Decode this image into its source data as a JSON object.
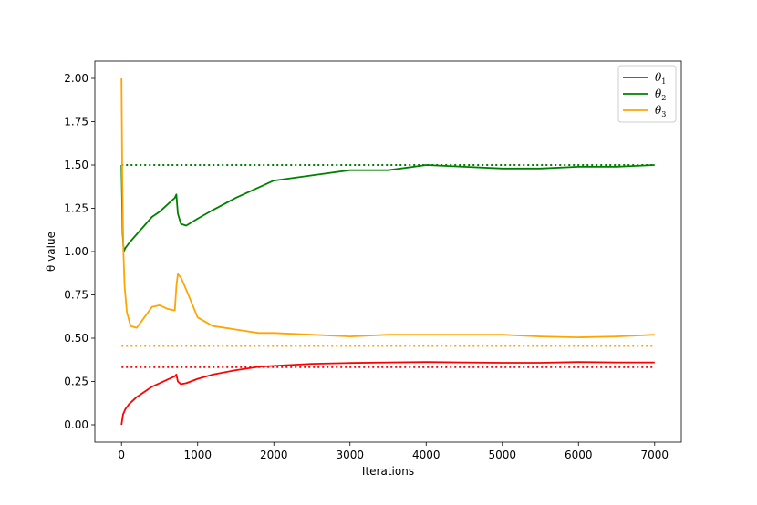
{
  "chart_data": {
    "type": "line",
    "title": "",
    "xlabel": "Iterations",
    "ylabel": "θ value",
    "xlim": [
      -350,
      7350
    ],
    "ylim": [
      -0.1,
      2.1
    ],
    "xticks": [
      0,
      1000,
      2000,
      3000,
      4000,
      5000,
      6000,
      7000
    ],
    "xtick_labels": [
      "0",
      "1000",
      "2000",
      "3000",
      "4000",
      "5000",
      "6000",
      "7000"
    ],
    "yticks": [
      0.0,
      0.25,
      0.5,
      0.75,
      1.0,
      1.25,
      1.5,
      1.75,
      2.0
    ],
    "ytick_labels": [
      "0.00",
      "0.25",
      "0.50",
      "0.75",
      "1.00",
      "1.25",
      "1.50",
      "1.75",
      "2.00"
    ],
    "grid": false,
    "legend_position": "top-right",
    "series": [
      {
        "name": "θ1",
        "label_base": "θ",
        "label_sub": "1",
        "color": "#ff0000",
        "points": [
          [
            0,
            0.0
          ],
          [
            20,
            0.06
          ],
          [
            50,
            0.09
          ],
          [
            100,
            0.12
          ],
          [
            200,
            0.16
          ],
          [
            300,
            0.19
          ],
          [
            400,
            0.22
          ],
          [
            500,
            0.24
          ],
          [
            600,
            0.26
          ],
          [
            700,
            0.28
          ],
          [
            720,
            0.29
          ],
          [
            740,
            0.25
          ],
          [
            780,
            0.235
          ],
          [
            850,
            0.24
          ],
          [
            1000,
            0.265
          ],
          [
            1200,
            0.29
          ],
          [
            1500,
            0.315
          ],
          [
            1800,
            0.335
          ],
          [
            2000,
            0.34
          ],
          [
            2500,
            0.352
          ],
          [
            3000,
            0.357
          ],
          [
            3500,
            0.36
          ],
          [
            4000,
            0.362
          ],
          [
            4500,
            0.36
          ],
          [
            5000,
            0.358
          ],
          [
            5500,
            0.358
          ],
          [
            6000,
            0.362
          ],
          [
            6500,
            0.36
          ],
          [
            7000,
            0.36
          ]
        ],
        "target": 0.333
      },
      {
        "name": "θ2",
        "label_base": "θ",
        "label_sub": "2",
        "color": "#008000",
        "points": [
          [
            0,
            1.5
          ],
          [
            15,
            1.1
          ],
          [
            30,
            1.0
          ],
          [
            50,
            1.02
          ],
          [
            100,
            1.05
          ],
          [
            200,
            1.1
          ],
          [
            300,
            1.15
          ],
          [
            400,
            1.2
          ],
          [
            500,
            1.23
          ],
          [
            600,
            1.27
          ],
          [
            700,
            1.31
          ],
          [
            720,
            1.33
          ],
          [
            740,
            1.22
          ],
          [
            780,
            1.16
          ],
          [
            850,
            1.15
          ],
          [
            1000,
            1.19
          ],
          [
            1200,
            1.24
          ],
          [
            1500,
            1.31
          ],
          [
            1800,
            1.37
          ],
          [
            2000,
            1.41
          ],
          [
            2500,
            1.44
          ],
          [
            3000,
            1.47
          ],
          [
            3500,
            1.47
          ],
          [
            4000,
            1.5
          ],
          [
            4500,
            1.49
          ],
          [
            5000,
            1.48
          ],
          [
            5500,
            1.48
          ],
          [
            6000,
            1.49
          ],
          [
            6500,
            1.49
          ],
          [
            7000,
            1.5
          ]
        ],
        "target": 1.5
      },
      {
        "name": "θ3",
        "label_base": "θ",
        "label_sub": "3",
        "color": "#ffa500",
        "points": [
          [
            0,
            2.0
          ],
          [
            10,
            1.4
          ],
          [
            25,
            1.0
          ],
          [
            40,
            0.8
          ],
          [
            70,
            0.65
          ],
          [
            120,
            0.57
          ],
          [
            200,
            0.56
          ],
          [
            300,
            0.62
          ],
          [
            400,
            0.68
          ],
          [
            500,
            0.69
          ],
          [
            600,
            0.67
          ],
          [
            700,
            0.66
          ],
          [
            720,
            0.8
          ],
          [
            740,
            0.87
          ],
          [
            780,
            0.85
          ],
          [
            850,
            0.78
          ],
          [
            1000,
            0.62
          ],
          [
            1200,
            0.57
          ],
          [
            1500,
            0.55
          ],
          [
            1800,
            0.53
          ],
          [
            2000,
            0.53
          ],
          [
            2500,
            0.52
          ],
          [
            3000,
            0.51
          ],
          [
            3500,
            0.52
          ],
          [
            4000,
            0.52
          ],
          [
            4500,
            0.52
          ],
          [
            5000,
            0.52
          ],
          [
            5500,
            0.51
          ],
          [
            6000,
            0.505
          ],
          [
            6500,
            0.51
          ],
          [
            7000,
            0.52
          ]
        ],
        "target": 0.455
      }
    ]
  }
}
